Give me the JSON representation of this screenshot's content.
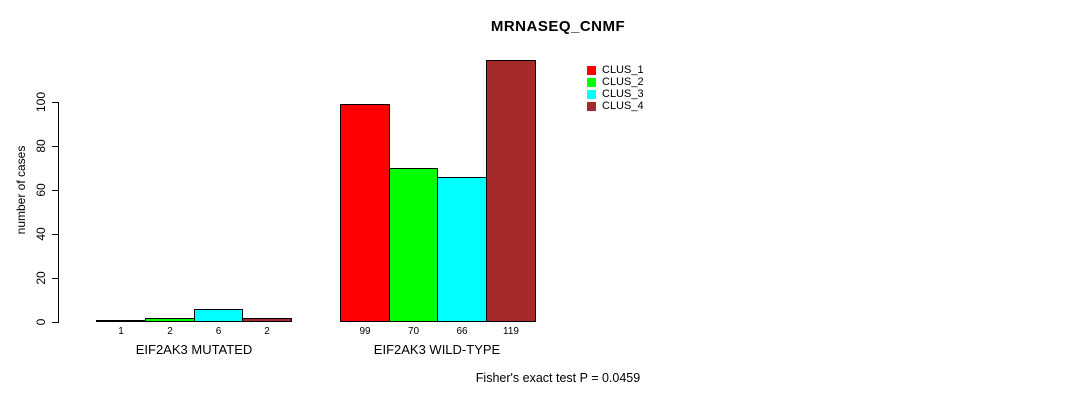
{
  "figure": {
    "title": "MRNASEQ_CNMF",
    "annotation": "Fisher's exact test P = 0.0459"
  },
  "chart_data": {
    "type": "bar",
    "title": "MRNASEQ_CNMF",
    "xlabel": "",
    "ylabel": "number of cases",
    "ylim": [
      0,
      100
    ],
    "yticks": [
      0,
      20,
      40,
      60,
      80,
      100
    ],
    "grid": false,
    "legend_position": "top-right-inside",
    "categories": [
      "EIF2AK3 MUTATED",
      "EIF2AK3 WILD-TYPE"
    ],
    "series": [
      {
        "name": "CLUS_1",
        "color": "#FF0000",
        "values": [
          1,
          99
        ]
      },
      {
        "name": "CLUS_2",
        "color": "#00FF00",
        "values": [
          2,
          70
        ]
      },
      {
        "name": "CLUS_3",
        "color": "#00FFFF",
        "values": [
          6,
          66
        ]
      },
      {
        "name": "CLUS_4",
        "color": "#A52A2A",
        "values": [
          2,
          119
        ]
      }
    ],
    "bar_labels": [
      [
        1,
        2,
        6,
        2
      ],
      [
        99,
        70,
        66,
        119
      ]
    ],
    "annotation": "Fisher's exact test P = 0.0459"
  },
  "colors": {
    "background": "#FFFFFF",
    "axis": "#000000",
    "text": "#000000"
  }
}
